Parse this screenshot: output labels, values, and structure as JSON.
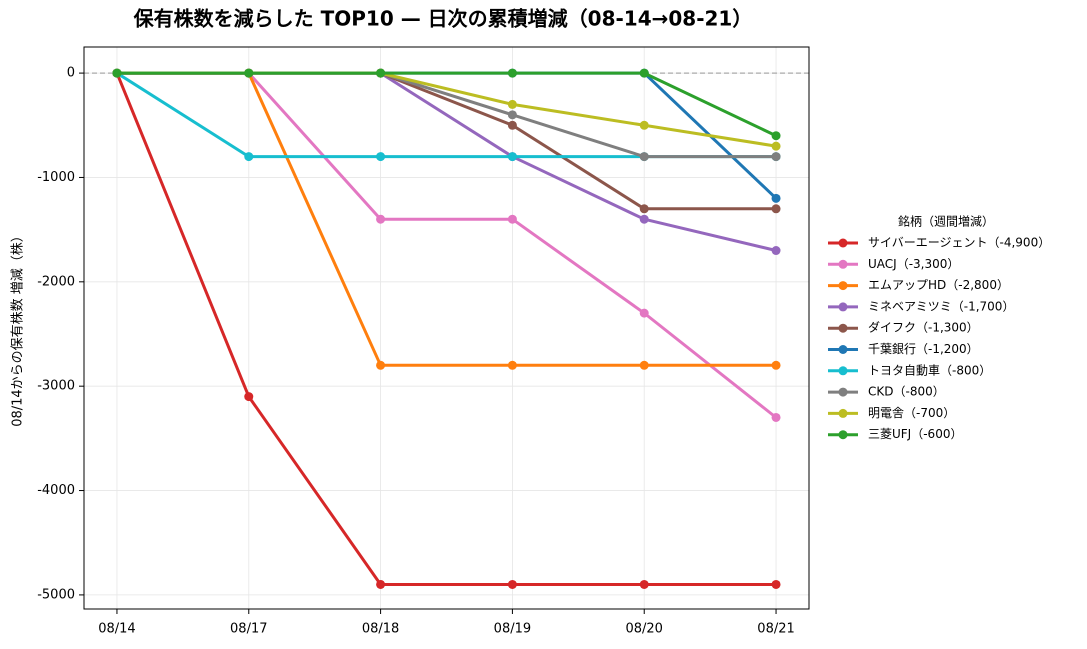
{
  "chart_data": {
    "type": "line",
    "title": "保有株数を減らした TOP10 — 日次の累積増減（08-14→08-21）",
    "y_label": "08/14からの保有株数 増減（株）",
    "legend_title": "銘柄（週間増減）",
    "legend": "right",
    "grid": true,
    "hline": 0,
    "categories": [
      "08/14",
      "08/17",
      "08/18",
      "08/19",
      "08/20",
      "08/21"
    ],
    "ylim": [
      -5135,
      250
    ],
    "yticks": [
      0,
      -1000,
      -2000,
      -3000,
      -4000,
      -5000
    ],
    "series": [
      {
        "name": "サイバーエージェント（-4,900）",
        "color": "#d62728",
        "values": [
          0,
          -3100,
          -4900,
          -4900,
          -4900,
          -4900
        ]
      },
      {
        "name": "UACJ（-3,300）",
        "color": "#e377c2",
        "values": [
          0,
          0,
          -1400,
          -1400,
          -2300,
          -3300
        ]
      },
      {
        "name": "エムアップHD（-2,800）",
        "color": "#ff7f0e",
        "values": [
          0,
          0,
          -2800,
          -2800,
          -2800,
          -2800
        ]
      },
      {
        "name": "ミネベアミツミ（-1,700）",
        "color": "#9467bd",
        "values": [
          0,
          0,
          0,
          -800,
          -1400,
          -1700
        ]
      },
      {
        "name": "ダイフク（-1,300）",
        "color": "#8c564b",
        "values": [
          0,
          0,
          0,
          -500,
          -1300,
          -1300
        ]
      },
      {
        "name": "千葉銀行（-1,200）",
        "color": "#1f77b4",
        "values": [
          0,
          0,
          0,
          0,
          0,
          -1200
        ]
      },
      {
        "name": "トヨタ自動車（-800）",
        "color": "#17becf",
        "values": [
          0,
          -800,
          -800,
          -800,
          -800,
          -800
        ]
      },
      {
        "name": "CKD（-800）",
        "color": "#7f7f7f",
        "values": [
          0,
          0,
          0,
          -400,
          -800,
          -800
        ]
      },
      {
        "name": "明電舎（-700）",
        "color": "#bcbd22",
        "values": [
          0,
          0,
          0,
          -300,
          -500,
          -700
        ]
      },
      {
        "name": "三菱UFJ（-600）",
        "color": "#2ca02c",
        "values": [
          0,
          0,
          0,
          0,
          0,
          -600
        ]
      }
    ]
  }
}
